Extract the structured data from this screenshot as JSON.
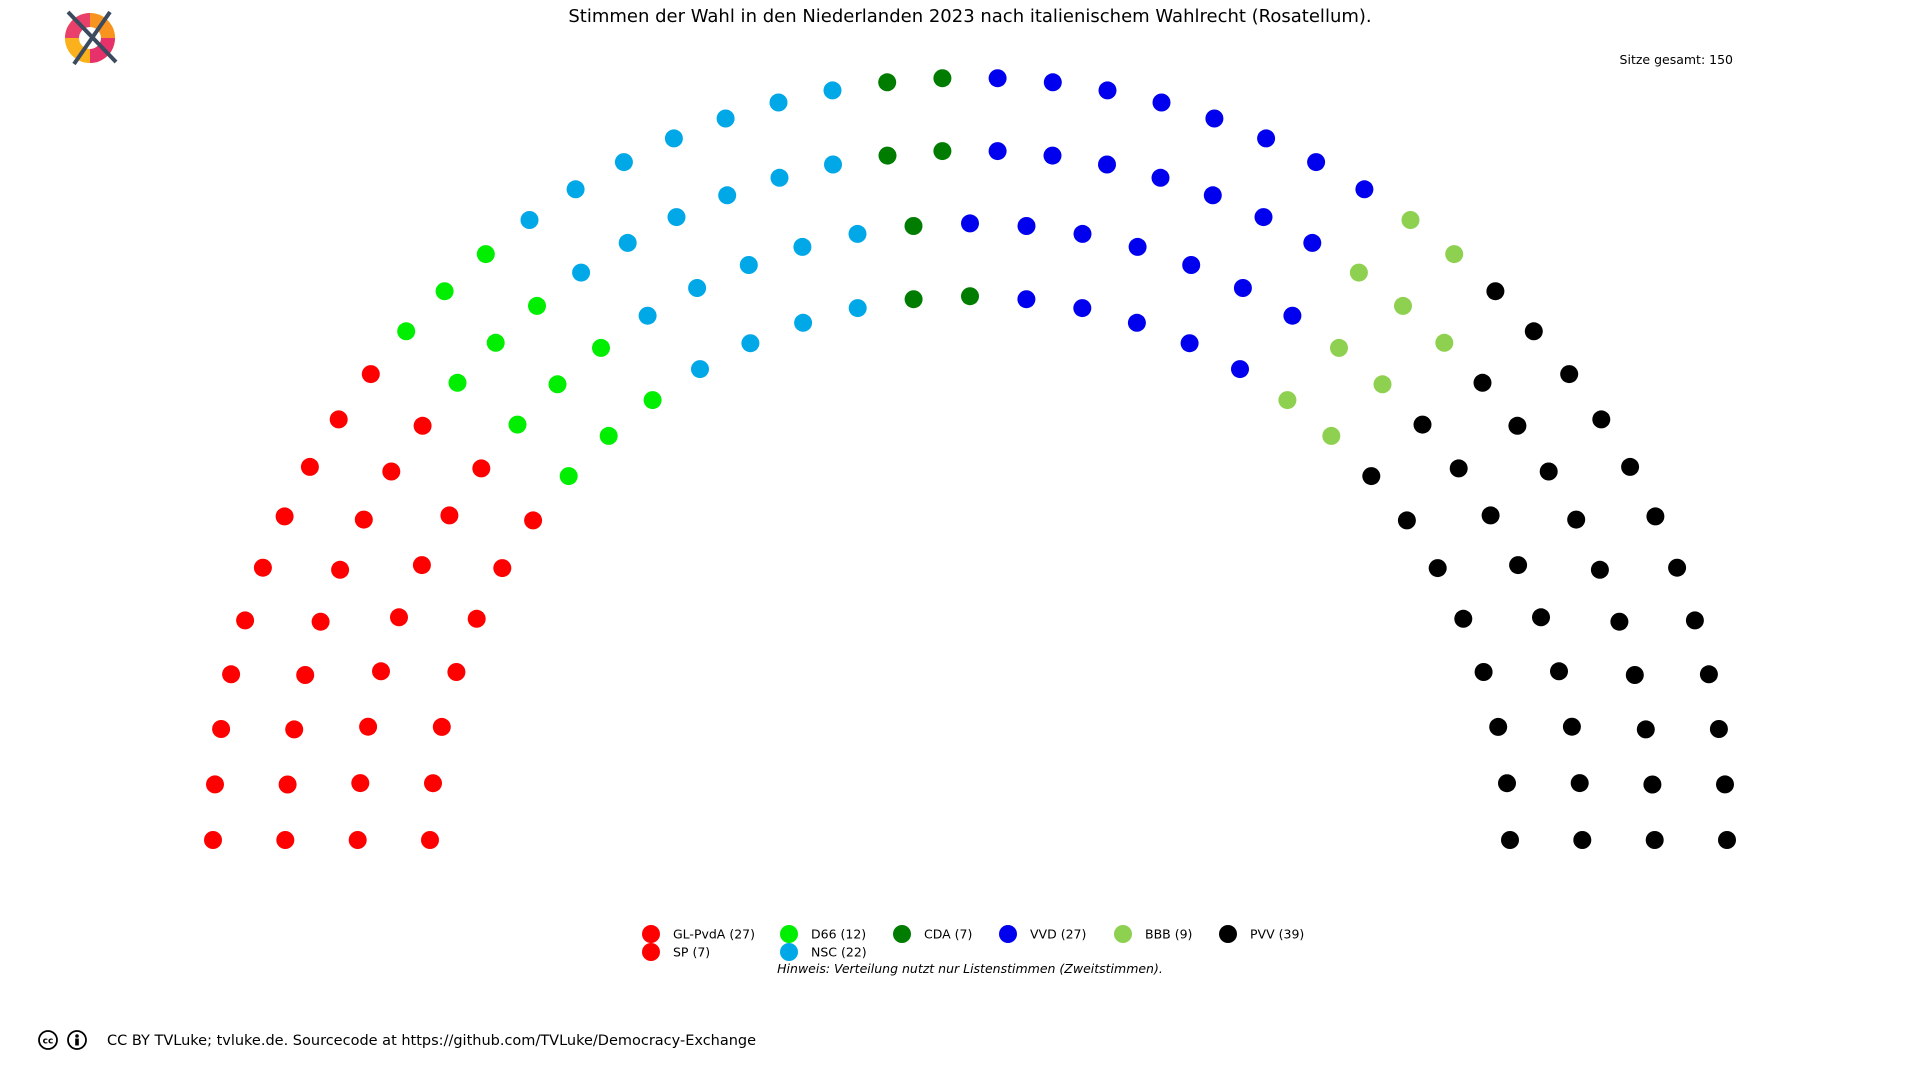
{
  "chart_data": {
    "type": "parliament",
    "title": "Stimmen der Wahl in den Niederlanden 2023 nach italienischem Wahlrecht (Rosatellum).",
    "total_label": "Sitze gesamt: 150",
    "total_seats": 150,
    "rows": 4,
    "parties": [
      {
        "name": "GL-PvdA (27)",
        "seats": 27,
        "color": "#ff0000"
      },
      {
        "name": "SP (7)",
        "seats": 7,
        "color": "#ff0000"
      },
      {
        "name": "D66 (12)",
        "seats": 12,
        "color": "#00ee00"
      },
      {
        "name": "NSC (22)",
        "seats": 22,
        "color": "#00a8e8"
      },
      {
        "name": "CDA (7)",
        "seats": 7,
        "color": "#007d00"
      },
      {
        "name": "VVD (27)",
        "seats": 27,
        "color": "#0000ee"
      },
      {
        "name": "BBB (9)",
        "seats": 9,
        "color": "#8ed050"
      },
      {
        "name": "PVV (39)",
        "seats": 39,
        "color": "#000000"
      }
    ],
    "note": "Hinweis: Verteilung nutzt nur Listenstimmen (Zweitstimmen)."
  },
  "footer": {
    "credit": "CC BY TVLuke; tvluke.de. Sourcecode at https://github.com/TVLuke/Democracy-Exchange",
    "icons": [
      "logo-icon",
      "cc-icon",
      "by-icon"
    ]
  }
}
